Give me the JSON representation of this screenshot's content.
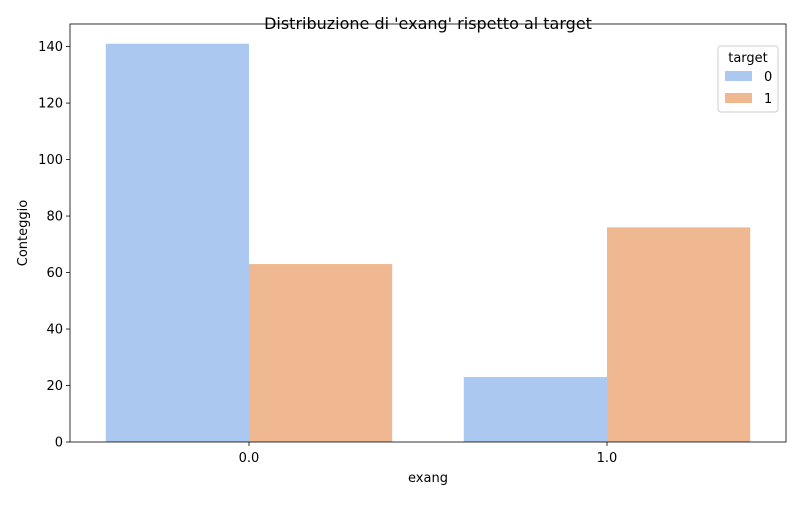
{
  "chart_data": {
    "type": "bar",
    "title": "Distribuzione di 'exang' rispetto al target",
    "xlabel": "exang",
    "ylabel": "Conteggio",
    "categories": [
      "0.0",
      "1.0"
    ],
    "ylim": [
      0,
      148
    ],
    "yticks": [
      0,
      20,
      40,
      60,
      80,
      100,
      120,
      140
    ],
    "series": [
      {
        "name": "0",
        "color": "#abc9f0",
        "values": [
          141,
          23
        ]
      },
      {
        "name": "1",
        "color": "#f0b891",
        "values": [
          63,
          76
        ]
      }
    ],
    "legend": {
      "title": "target",
      "position": "top-right"
    },
    "grid": false
  }
}
